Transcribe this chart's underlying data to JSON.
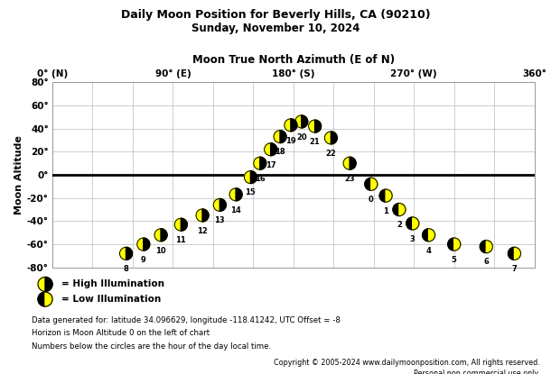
{
  "title1": "Daily Moon Position for Beverly Hills, CA (90210)",
  "title2": "Sunday, November 10, 2024",
  "xlabel": "Moon True North Azimuth (E of N)",
  "ylabel": "Moon Altitude",
  "xlim": [
    0,
    360
  ],
  "ylim": [
    -80,
    80
  ],
  "xticks": [
    0,
    90,
    180,
    270,
    360
  ],
  "xtick_labels": [
    "0° (N)",
    "90° (E)",
    "180° (S)",
    "270° (W)",
    "360°"
  ],
  "yticks": [
    -80,
    -60,
    -40,
    -20,
    0,
    20,
    40,
    60,
    80
  ],
  "ytick_labels": [
    "-80°",
    "-60°",
    "-40°",
    "-20°",
    "0°",
    "20°",
    "40°",
    "60°",
    "80°"
  ],
  "moon_data": [
    {
      "hour": 8,
      "azimuth": 55,
      "altitude": -68,
      "illumination": "high"
    },
    {
      "hour": 9,
      "azimuth": 68,
      "altitude": -60,
      "illumination": "high"
    },
    {
      "hour": 10,
      "azimuth": 81,
      "altitude": -52,
      "illumination": "high"
    },
    {
      "hour": 11,
      "azimuth": 96,
      "altitude": -43,
      "illumination": "high"
    },
    {
      "hour": 12,
      "azimuth": 112,
      "altitude": -35,
      "illumination": "high"
    },
    {
      "hour": 13,
      "azimuth": 125,
      "altitude": -26,
      "illumination": "high"
    },
    {
      "hour": 14,
      "azimuth": 137,
      "altitude": -17,
      "illumination": "high"
    },
    {
      "hour": 15,
      "azimuth": 148,
      "altitude": -2,
      "illumination": "high"
    },
    {
      "hour": 16,
      "azimuth": 155,
      "altitude": 10,
      "illumination": "high"
    },
    {
      "hour": 17,
      "azimuth": 163,
      "altitude": 22,
      "illumination": "high"
    },
    {
      "hour": 18,
      "azimuth": 170,
      "altitude": 33,
      "illumination": "high"
    },
    {
      "hour": 19,
      "azimuth": 178,
      "altitude": 43,
      "illumination": "high"
    },
    {
      "hour": 20,
      "azimuth": 186,
      "altitude": 46,
      "illumination": "high"
    },
    {
      "hour": 21,
      "azimuth": 196,
      "altitude": 42,
      "illumination": "high"
    },
    {
      "hour": 22,
      "azimuth": 208,
      "altitude": 32,
      "illumination": "high"
    },
    {
      "hour": 23,
      "azimuth": 222,
      "altitude": 10,
      "illumination": "high"
    },
    {
      "hour": 0,
      "azimuth": 238,
      "altitude": -8,
      "illumination": "low"
    },
    {
      "hour": 1,
      "azimuth": 249,
      "altitude": -18,
      "illumination": "low"
    },
    {
      "hour": 2,
      "azimuth": 259,
      "altitude": -30,
      "illumination": "low"
    },
    {
      "hour": 3,
      "azimuth": 269,
      "altitude": -42,
      "illumination": "low"
    },
    {
      "hour": 4,
      "azimuth": 281,
      "altitude": -52,
      "illumination": "low"
    },
    {
      "hour": 5,
      "azimuth": 300,
      "altitude": -60,
      "illumination": "low"
    },
    {
      "hour": 6,
      "azimuth": 324,
      "altitude": -62,
      "illumination": "low"
    },
    {
      "hour": 7,
      "azimuth": 345,
      "altitude": -68,
      "illumination": "low"
    }
  ],
  "high_color_face": "#FFFF00",
  "low_color_face": "#000000",
  "horizon_color": "#000000",
  "grid_color": "#bbbbbb",
  "bg_color": "#ffffff",
  "legend_text_high": "= High Illumination",
  "legend_text_low": "= Low Illumination",
  "footer1": "Data generated for: latitude 34.096629, longitude -118.41242, UTC Offset = -8",
  "footer2": "Horizon is Moon Altitude 0 on the left of chart",
  "footer3": "Numbers below the circles are the hour of the day local time.",
  "copyright1": "Copyright © 2005-2024 www.dailymoonposition.com, All rights reserved.",
  "copyright2": "Personal non commercial use only."
}
